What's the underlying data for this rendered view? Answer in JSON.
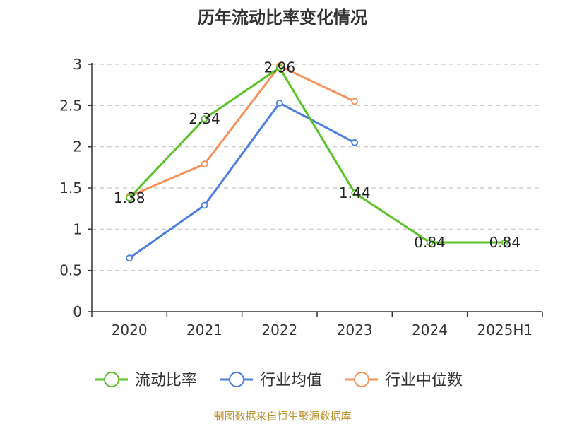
{
  "chart_data": {
    "type": "line",
    "title": "历年流动比率变化情况",
    "categories": [
      "2020",
      "2021",
      "2022",
      "2023",
      "2024",
      "2025H1"
    ],
    "ylim": [
      0,
      3
    ],
    "yticks": [
      "0",
      "0.5",
      "1",
      "1.5",
      "2",
      "2.5",
      "3"
    ],
    "grid": true,
    "legend_position": "bottom",
    "series": [
      {
        "name": "流动比率",
        "color": "#5cc22a",
        "values": [
          1.38,
          2.34,
          2.96,
          1.44,
          0.84,
          0.84
        ],
        "labels": [
          "1.38",
          "2.34",
          "2.96",
          "1.44",
          "0.84",
          "0.84"
        ]
      },
      {
        "name": "行业均值",
        "color": "#4a7fdc",
        "values": [
          0.65,
          1.29,
          2.53,
          2.05,
          null,
          null
        ]
      },
      {
        "name": "行业中位数",
        "color": "#f5915a",
        "values": [
          1.4,
          1.79,
          2.98,
          2.55,
          null,
          null
        ]
      }
    ],
    "source": "制图数据来自恒生聚源数据库"
  }
}
